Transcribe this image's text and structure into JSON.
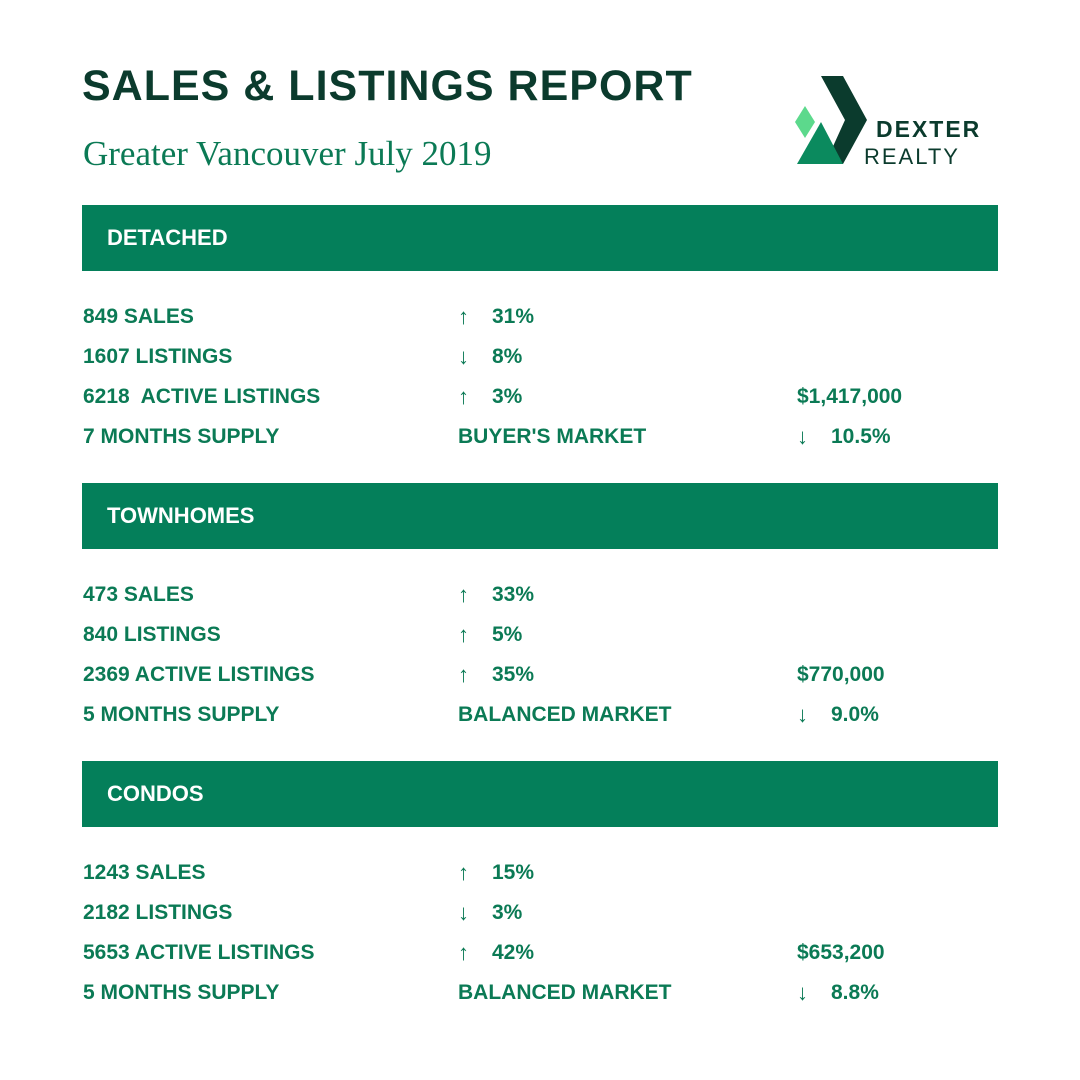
{
  "header": {
    "title": "SALES & LISTINGS REPORT",
    "subtitle": "Greater Vancouver July 2019"
  },
  "logo": {
    "line1": "DEXTER",
    "line2": "REALTY"
  },
  "sections": [
    {
      "title": "DETACHED",
      "rows": [
        [
          {
            "text": "849 SALES"
          },
          {
            "arrow": "↑",
            "text": "31%"
          }
        ],
        [
          {
            "text": "1607 LISTINGS"
          },
          {
            "arrow": "↓",
            "text": "8%"
          }
        ],
        [
          {
            "text": "6218  ACTIVE LISTINGS"
          },
          {
            "arrow": "↑",
            "text": "3%"
          },
          {
            "text": "$1,417,000"
          }
        ],
        [
          {
            "text": "7 MONTHS SUPPLY"
          },
          {
            "text": "BUYER'S MARKET"
          },
          {
            "arrow": "↓",
            "text": "10.5%"
          }
        ]
      ]
    },
    {
      "title": "TOWNHOMES",
      "rows": [
        [
          {
            "text": "473 SALES"
          },
          {
            "arrow": "↑",
            "text": "33%"
          }
        ],
        [
          {
            "text": "840 LISTINGS"
          },
          {
            "arrow": "↑",
            "text": "5%"
          }
        ],
        [
          {
            "text": "2369 ACTIVE LISTINGS"
          },
          {
            "arrow": "↑",
            "text": "35%"
          },
          {
            "text": "$770,000"
          }
        ],
        [
          {
            "text": "5 MONTHS SUPPLY"
          },
          {
            "text": "BALANCED MARKET"
          },
          {
            "arrow": "↓",
            "text": "9.0%"
          }
        ]
      ]
    },
    {
      "title": "CONDOS",
      "rows": [
        [
          {
            "text": "1243 SALES"
          },
          {
            "arrow": "↑",
            "text": "15%"
          }
        ],
        [
          {
            "text": "2182 LISTINGS"
          },
          {
            "arrow": "↓",
            "text": "3%"
          }
        ],
        [
          {
            "text": "5653 ACTIVE LISTINGS"
          },
          {
            "arrow": "↑",
            "text": "42%"
          },
          {
            "text": "$653,200"
          }
        ],
        [
          {
            "text": "5 MONTHS SUPPLY"
          },
          {
            "text": "BALANCED MARKET"
          },
          {
            "arrow": "↓",
            "text": "8.8%"
          }
        ]
      ]
    }
  ]
}
